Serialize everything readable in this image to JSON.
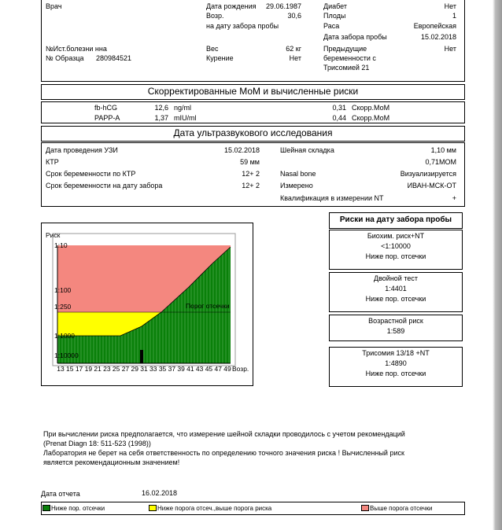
{
  "patient": {
    "doctor_label": "Врач",
    "birth_date_label": "Дата рождения",
    "birth_date": "29.06.1987",
    "diabetes_label": "Диабет",
    "diabetes": "Нет",
    "age_label": "Возр.",
    "age": "30,6",
    "fetuses_label": "Плоды",
    "fetuses": "1",
    "age_note": "на дату забора пробы",
    "race_label": "Раса",
    "race": "Европейская",
    "sample_date_label": "Дата забора пробы",
    "sample_date": "15.02.2018",
    "case_label": "№Ист.болезни нна",
    "weight_label": "Вес",
    "weight": "62  кг",
    "previous_label": [
      "Предыдущие",
      "беременности с",
      "Трисомией 21"
    ],
    "previous": "Нет",
    "sample_label": "№ Образца",
    "sample_number": "280984521",
    "smoking_label": "Курение",
    "smoking": "Нет"
  },
  "mom": {
    "title": "Скорректированные МоМ и вычисленные риски",
    "rows": [
      [
        "fb-hCG",
        "12,6",
        "ng/ml",
        "0,31",
        "Скорр.МоМ"
      ],
      [
        "PAPP-A",
        "1,37",
        "mIU/ml",
        "0,44",
        "Скорр.МоМ"
      ]
    ]
  },
  "ultrasound": {
    "title": "Дата ультразвукового исследования",
    "left": [
      [
        "Дата проведения УЗИ",
        "15.02.2018"
      ],
      [
        "КТР",
        "59 мм"
      ],
      [
        "Срок беременности по КТР",
        "12+  2"
      ],
      [
        "Срок беременности на дату забора",
        "12+  2"
      ]
    ],
    "right": [
      [
        "Шейная складка",
        "1,10   мм"
      ],
      [
        "",
        "0,71МОМ"
      ],
      [
        "Nasal bone",
        "Визуализируется"
      ],
      [
        "Измерено",
        "ИВАН-МСК-ОТ"
      ],
      [
        "Квалификация в измерении NT",
        "+"
      ]
    ]
  },
  "chart": {
    "y_title": "Риск",
    "threshold_label": "Порог отсечки",
    "yticks": [
      "1:10",
      "1:100",
      "1:250",
      "1:1000",
      "1:10000"
    ],
    "xticks": [
      "13",
      "15",
      "17",
      "19",
      "21",
      "23",
      "25",
      "27",
      "29",
      "31",
      "33",
      "35",
      "37",
      "39",
      "41",
      "43",
      "45",
      "47",
      "49"
    ],
    "x_title": "Возр."
  },
  "risks": {
    "title": "Риски на дату забора пробы",
    "boxes": [
      [
        "Биохим. риск+NT",
        "<1:10000",
        "Ниже пор. отсечки"
      ],
      [
        "Двойной тест",
        "1:4401",
        "Ниже пор. отсечки"
      ],
      [
        "Возрастной риск",
        "1:589"
      ],
      [
        "Трисомия 13/18 +NT",
        "1:4890",
        "Ниже пор. отсечки"
      ]
    ]
  },
  "notes": [
    "При вычислении риска предполагается, что измерение шейной складки проводилось с учетом рекомендаций",
    "(Prenat Diagn 18: 511-523 (1998))",
    "Лаборатория не берет на себя ответственность по определению точного значения риска ! Вычисленный риск",
    "является рекомендационным значением!"
  ],
  "report": {
    "date_label": "Дата отчета",
    "date": "16.02.2018"
  },
  "legend": [
    "Ниже пор. отсечки",
    "Ниже порога отсеч.,выше порога риска",
    "Выше порога отсечки"
  ]
}
